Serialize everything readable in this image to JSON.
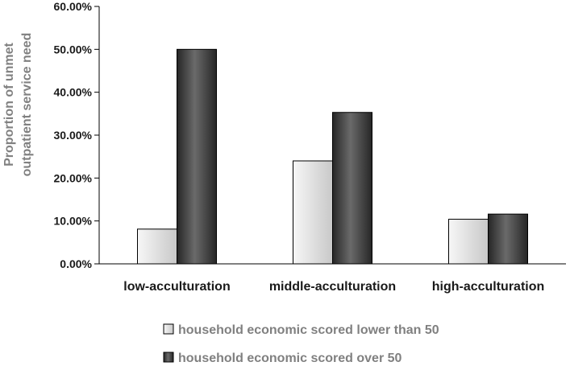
{
  "chart_data": {
    "type": "bar",
    "categories": [
      "low-acculturation",
      "middle-acculturation",
      "high-acculturation"
    ],
    "series": [
      {
        "name": "household economic scored lower than 50",
        "values": [
          8.1,
          24.0,
          10.4
        ],
        "color": "#e6e6e6"
      },
      {
        "name": "household economic scored over 50",
        "values": [
          50.0,
          35.3,
          11.6
        ],
        "color": "#4d4d4d"
      }
    ],
    "title": "",
    "xlabel": "",
    "ylabel_lines": [
      "Proportion of unmet",
      "outpatient service need"
    ],
    "ylim": [
      0,
      60
    ],
    "yticks": [
      "0.00%",
      "10.00%",
      "20.00%",
      "30.00%",
      "40.00%",
      "50.00%",
      "60.00%"
    ],
    "grid": false,
    "legend_position": "bottom"
  }
}
